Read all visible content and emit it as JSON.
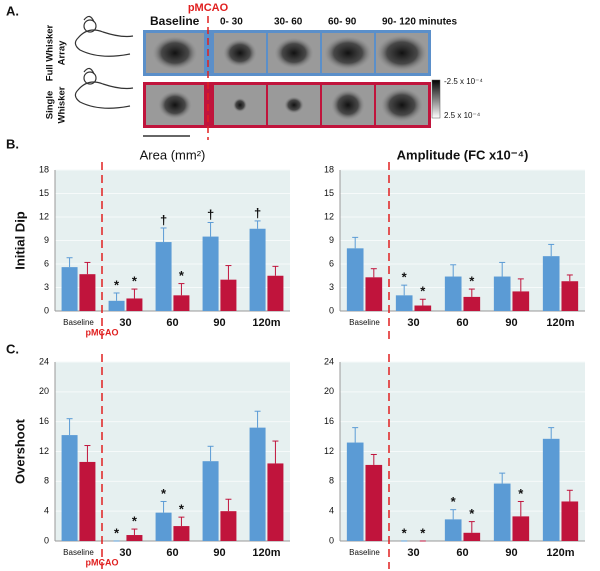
{
  "panel_labels": [
    "A.",
    "B.",
    "C."
  ],
  "panel_a": {
    "event_label": "pMCAO",
    "columns": [
      "Baseline",
      "0- 30",
      "30- 60",
      "60- 90",
      "90- 120 minutes"
    ],
    "rows": [
      [
        "Full Whisker",
        "Array"
      ],
      [
        "Single",
        "Whisker"
      ]
    ],
    "colorbar_labels": [
      "-2.5 x 10⁻⁴",
      "2.5 x 10⁻⁴"
    ]
  },
  "chart_data": [
    {
      "type": "bar",
      "title": "Area (mm²)",
      "ylabel": "Initial Dip",
      "divider": true,
      "divider_label": "pMCAO",
      "categories": [
        "Baseline",
        "30",
        "60",
        "90",
        "120m"
      ],
      "ylim": [
        0,
        18
      ],
      "yticks": [
        0,
        3,
        6,
        9,
        12,
        15,
        18
      ],
      "grid": true,
      "series": [
        {
          "color": "#5b9bd5",
          "values": [
            5.6,
            1.3,
            8.8,
            9.5,
            10.5
          ],
          "errors": [
            1.2,
            1.0,
            1.8,
            1.8,
            1.0
          ],
          "markers": [
            null,
            "*",
            "†",
            "†",
            "†"
          ]
        },
        {
          "color": "#c0143c",
          "values": [
            4.7,
            1.6,
            2.0,
            4.0,
            4.5
          ],
          "errors": [
            1.5,
            1.2,
            1.5,
            1.8,
            1.2
          ],
          "markers": [
            null,
            "*",
            "*",
            null,
            null
          ]
        }
      ]
    },
    {
      "type": "bar",
      "title": "Amplitude (FC x10⁻⁴)",
      "divider": true,
      "categories": [
        "Baseline",
        "30",
        "60",
        "90",
        "120m"
      ],
      "ylim": [
        0,
        18
      ],
      "yticks": [
        0,
        3,
        6,
        9,
        12,
        15,
        18
      ],
      "grid": true,
      "series": [
        {
          "color": "#5b9bd5",
          "values": [
            8.0,
            2.0,
            4.4,
            4.4,
            7.0
          ],
          "errors": [
            1.4,
            1.3,
            1.5,
            1.8,
            1.5
          ],
          "markers": [
            null,
            "*",
            null,
            null,
            null
          ]
        },
        {
          "color": "#c0143c",
          "values": [
            4.3,
            0.7,
            1.8,
            2.5,
            3.8
          ],
          "errors": [
            1.1,
            0.8,
            1.0,
            1.6,
            0.8
          ],
          "markers": [
            null,
            "*",
            "*",
            null,
            null
          ]
        }
      ]
    },
    {
      "type": "bar",
      "ylabel": "Overshoot",
      "divider": true,
      "divider_label": "pMCAO",
      "categories": [
        "Baseline",
        "30",
        "60",
        "90",
        "120m"
      ],
      "ylim": [
        0,
        24
      ],
      "yticks": [
        0,
        4,
        8,
        12,
        16,
        20,
        24
      ],
      "grid": true,
      "series": [
        {
          "color": "#5b9bd5",
          "values": [
            14.2,
            0,
            3.8,
            10.7,
            15.2
          ],
          "errors": [
            2.2,
            0,
            1.5,
            2.0,
            2.2
          ],
          "markers": [
            null,
            "*",
            "*",
            null,
            null
          ]
        },
        {
          "color": "#c0143c",
          "values": [
            10.6,
            0.8,
            2.0,
            4.0,
            10.4
          ],
          "errors": [
            2.2,
            0.8,
            1.2,
            1.6,
            3.0
          ],
          "markers": [
            null,
            "*",
            "*",
            null,
            null
          ]
        }
      ]
    },
    {
      "type": "bar",
      "divider": true,
      "categories": [
        "Baseline",
        "30",
        "60",
        "90",
        "120m"
      ],
      "ylim": [
        0,
        24
      ],
      "yticks": [
        0,
        4,
        8,
        12,
        16,
        20,
        24
      ],
      "grid": true,
      "series": [
        {
          "color": "#5b9bd5",
          "values": [
            13.2,
            0,
            2.9,
            7.7,
            13.7
          ],
          "errors": [
            2.0,
            0,
            1.3,
            1.4,
            1.5
          ],
          "markers": [
            null,
            "*",
            "*",
            null,
            null
          ]
        },
        {
          "color": "#c0143c",
          "values": [
            10.2,
            0,
            1.1,
            3.3,
            5.3
          ],
          "errors": [
            1.4,
            0,
            1.5,
            2.0,
            1.5
          ],
          "markers": [
            null,
            "*",
            "*",
            "*",
            null
          ]
        }
      ]
    }
  ]
}
